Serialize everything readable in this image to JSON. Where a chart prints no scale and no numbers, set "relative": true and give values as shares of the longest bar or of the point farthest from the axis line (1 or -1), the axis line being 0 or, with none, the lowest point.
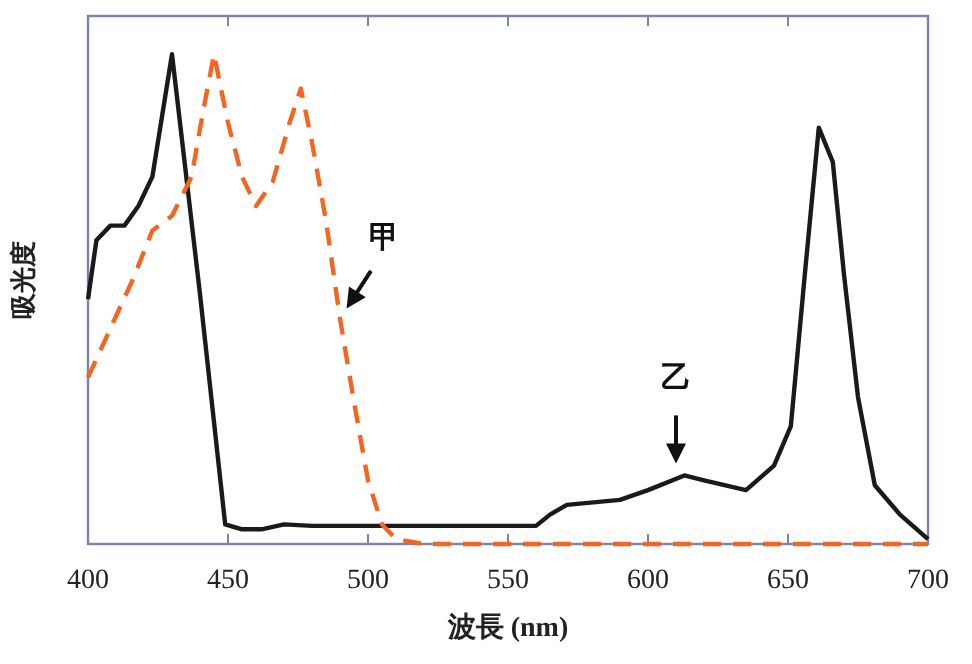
{
  "chart_data": {
    "type": "line",
    "relative": true,
    "xlabel": "波長 (nm)",
    "ylabel": "吸光度",
    "xlim": [
      400,
      700
    ],
    "xticks": [
      400,
      450,
      500,
      550,
      600,
      650,
      700
    ],
    "grid": false,
    "series": [
      {
        "color": "#1a1a1a",
        "line_style": "solid",
        "x": [
          400,
          403,
          408,
          413,
          418,
          423,
          430,
          440,
          449,
          455,
          462,
          470,
          480,
          520,
          560,
          565,
          571,
          590,
          600,
          613,
          620,
          635,
          645,
          651,
          656,
          661,
          666,
          670,
          675,
          681,
          690,
          700
        ],
        "values": [
          0.5,
          0.62,
          0.65,
          0.65,
          0.69,
          0.75,
          1.0,
          0.51,
          0.04,
          0.03,
          0.03,
          0.04,
          0.037,
          0.037,
          0.037,
          0.06,
          0.08,
          0.09,
          0.11,
          0.14,
          0.13,
          0.11,
          0.16,
          0.24,
          0.55,
          0.85,
          0.78,
          0.55,
          0.3,
          0.12,
          0.06,
          0.01
        ]
      },
      {
        "color": "#f26522",
        "line_style": "dashed",
        "x": [
          400,
          408,
          416,
          423,
          430,
          437,
          441,
          445,
          450,
          455,
          460,
          466,
          472,
          476,
          480,
          485,
          490,
          495,
          500,
          505,
          510,
          520,
          550,
          600,
          650,
          700
        ],
        "values": [
          0.34,
          0.44,
          0.54,
          0.64,
          0.67,
          0.75,
          0.88,
          1.0,
          0.86,
          0.75,
          0.69,
          0.74,
          0.86,
          0.93,
          0.82,
          0.66,
          0.46,
          0.29,
          0.13,
          0.04,
          0.01,
          0.0,
          0.0,
          0.0,
          0.0,
          0.0
        ]
      }
    ],
    "annotations": [
      {
        "text": "甲",
        "x": 490,
        "y": 0.46
      },
      {
        "text": "乙",
        "x": 610,
        "y": 0.14
      }
    ]
  }
}
